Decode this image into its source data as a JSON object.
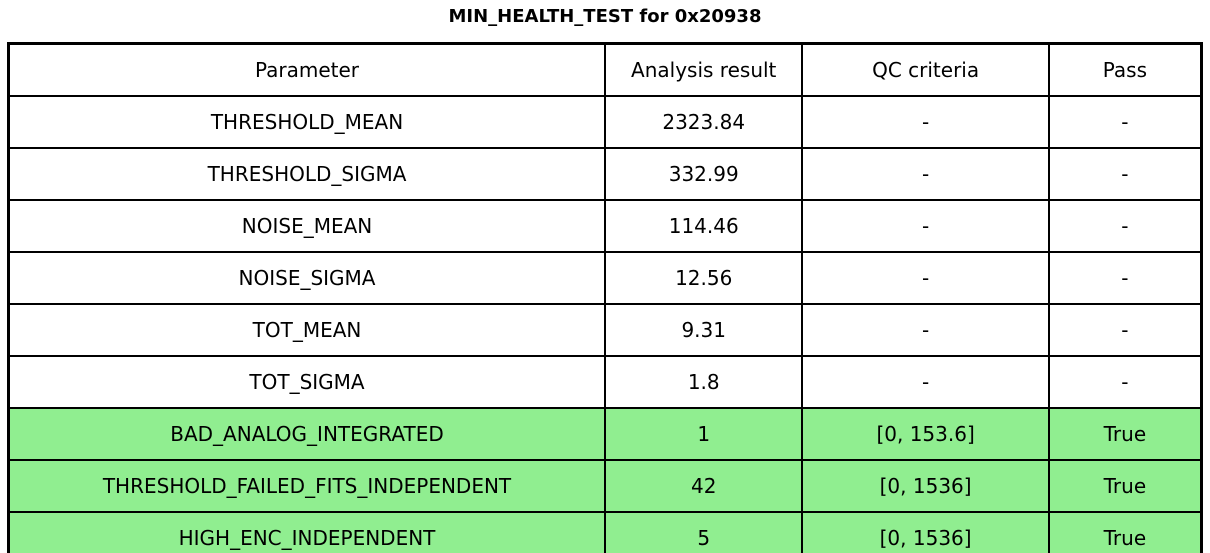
{
  "title": "MIN_HEALTH_TEST for 0x20938",
  "colors": {
    "highlight_green": "#90ee90",
    "border": "#000000",
    "text": "#000000",
    "background": "#ffffff"
  },
  "table": {
    "headers": [
      "Parameter",
      "Analysis result",
      "QC criteria",
      "Pass"
    ],
    "rows": [
      {
        "parameter": "THRESHOLD_MEAN",
        "analysis_result": "2323.84",
        "qc_criteria": "-",
        "pass": "-",
        "highlighted": false
      },
      {
        "parameter": "THRESHOLD_SIGMA",
        "analysis_result": "332.99",
        "qc_criteria": "-",
        "pass": "-",
        "highlighted": false
      },
      {
        "parameter": "NOISE_MEAN",
        "analysis_result": "114.46",
        "qc_criteria": "-",
        "pass": "-",
        "highlighted": false
      },
      {
        "parameter": "NOISE_SIGMA",
        "analysis_result": "12.56",
        "qc_criteria": "-",
        "pass": "-",
        "highlighted": false
      },
      {
        "parameter": "TOT_MEAN",
        "analysis_result": "9.31",
        "qc_criteria": "-",
        "pass": "-",
        "highlighted": false
      },
      {
        "parameter": "TOT_SIGMA",
        "analysis_result": "1.8",
        "qc_criteria": "-",
        "pass": "-",
        "highlighted": false
      },
      {
        "parameter": "BAD_ANALOG_INTEGRATED",
        "analysis_result": "1",
        "qc_criteria": "[0, 153.6]",
        "pass": "True",
        "highlighted": true
      },
      {
        "parameter": "THRESHOLD_FAILED_FITS_INDEPENDENT",
        "analysis_result": "42",
        "qc_criteria": "[0, 1536]",
        "pass": "True",
        "highlighted": true
      },
      {
        "parameter": "HIGH_ENC_INDEPENDENT",
        "analysis_result": "5",
        "qc_criteria": "[0, 1536]",
        "pass": "True",
        "highlighted": true
      }
    ]
  },
  "chart_data": {
    "type": "table",
    "title": "MIN_HEALTH_TEST for 0x20938",
    "columns": [
      "Parameter",
      "Analysis result",
      "QC criteria",
      "Pass"
    ],
    "rows": [
      [
        "THRESHOLD_MEAN",
        2323.84,
        "-",
        "-"
      ],
      [
        "THRESHOLD_SIGMA",
        332.99,
        "-",
        "-"
      ],
      [
        "NOISE_MEAN",
        114.46,
        "-",
        "-"
      ],
      [
        "NOISE_SIGMA",
        12.56,
        "-",
        "-"
      ],
      [
        "TOT_MEAN",
        9.31,
        "-",
        "-"
      ],
      [
        "TOT_SIGMA",
        1.8,
        "-",
        "-"
      ],
      [
        "BAD_ANALOG_INTEGRATED",
        1,
        "[0, 153.6]",
        "True"
      ],
      [
        "THRESHOLD_FAILED_FITS_INDEPENDENT",
        42,
        "[0, 1536]",
        "True"
      ],
      [
        "HIGH_ENC_INDEPENDENT",
        5,
        "[0, 1536]",
        "True"
      ]
    ],
    "highlighted_row_indices": [
      6,
      7,
      8
    ],
    "highlight_color": "#90ee90",
    "layout": {
      "grid": true,
      "header_row": true,
      "text_align": "center"
    }
  }
}
